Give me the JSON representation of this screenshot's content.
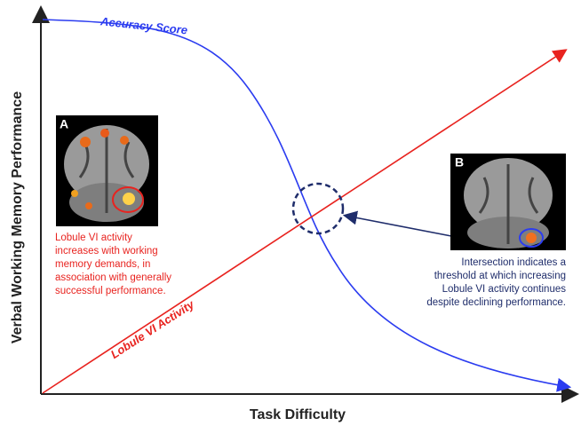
{
  "axes": {
    "y_label": "Verbal Working Memory Performance",
    "x_label": "Task Difficulty"
  },
  "curves": {
    "accuracy": "Accuracy Score",
    "activity": "Lobule VI Activity"
  },
  "panels": {
    "a": {
      "label": "A",
      "caption": [
        "Lobule VI activity",
        "increases with working",
        "memory demands, in",
        "association with generally",
        "successful performance."
      ]
    },
    "b": {
      "label": "B",
      "caption": [
        "Intersection indicates a",
        "threshold at which increasing",
        "Lobule VI activity continues",
        "despite declining performance."
      ]
    }
  }
}
